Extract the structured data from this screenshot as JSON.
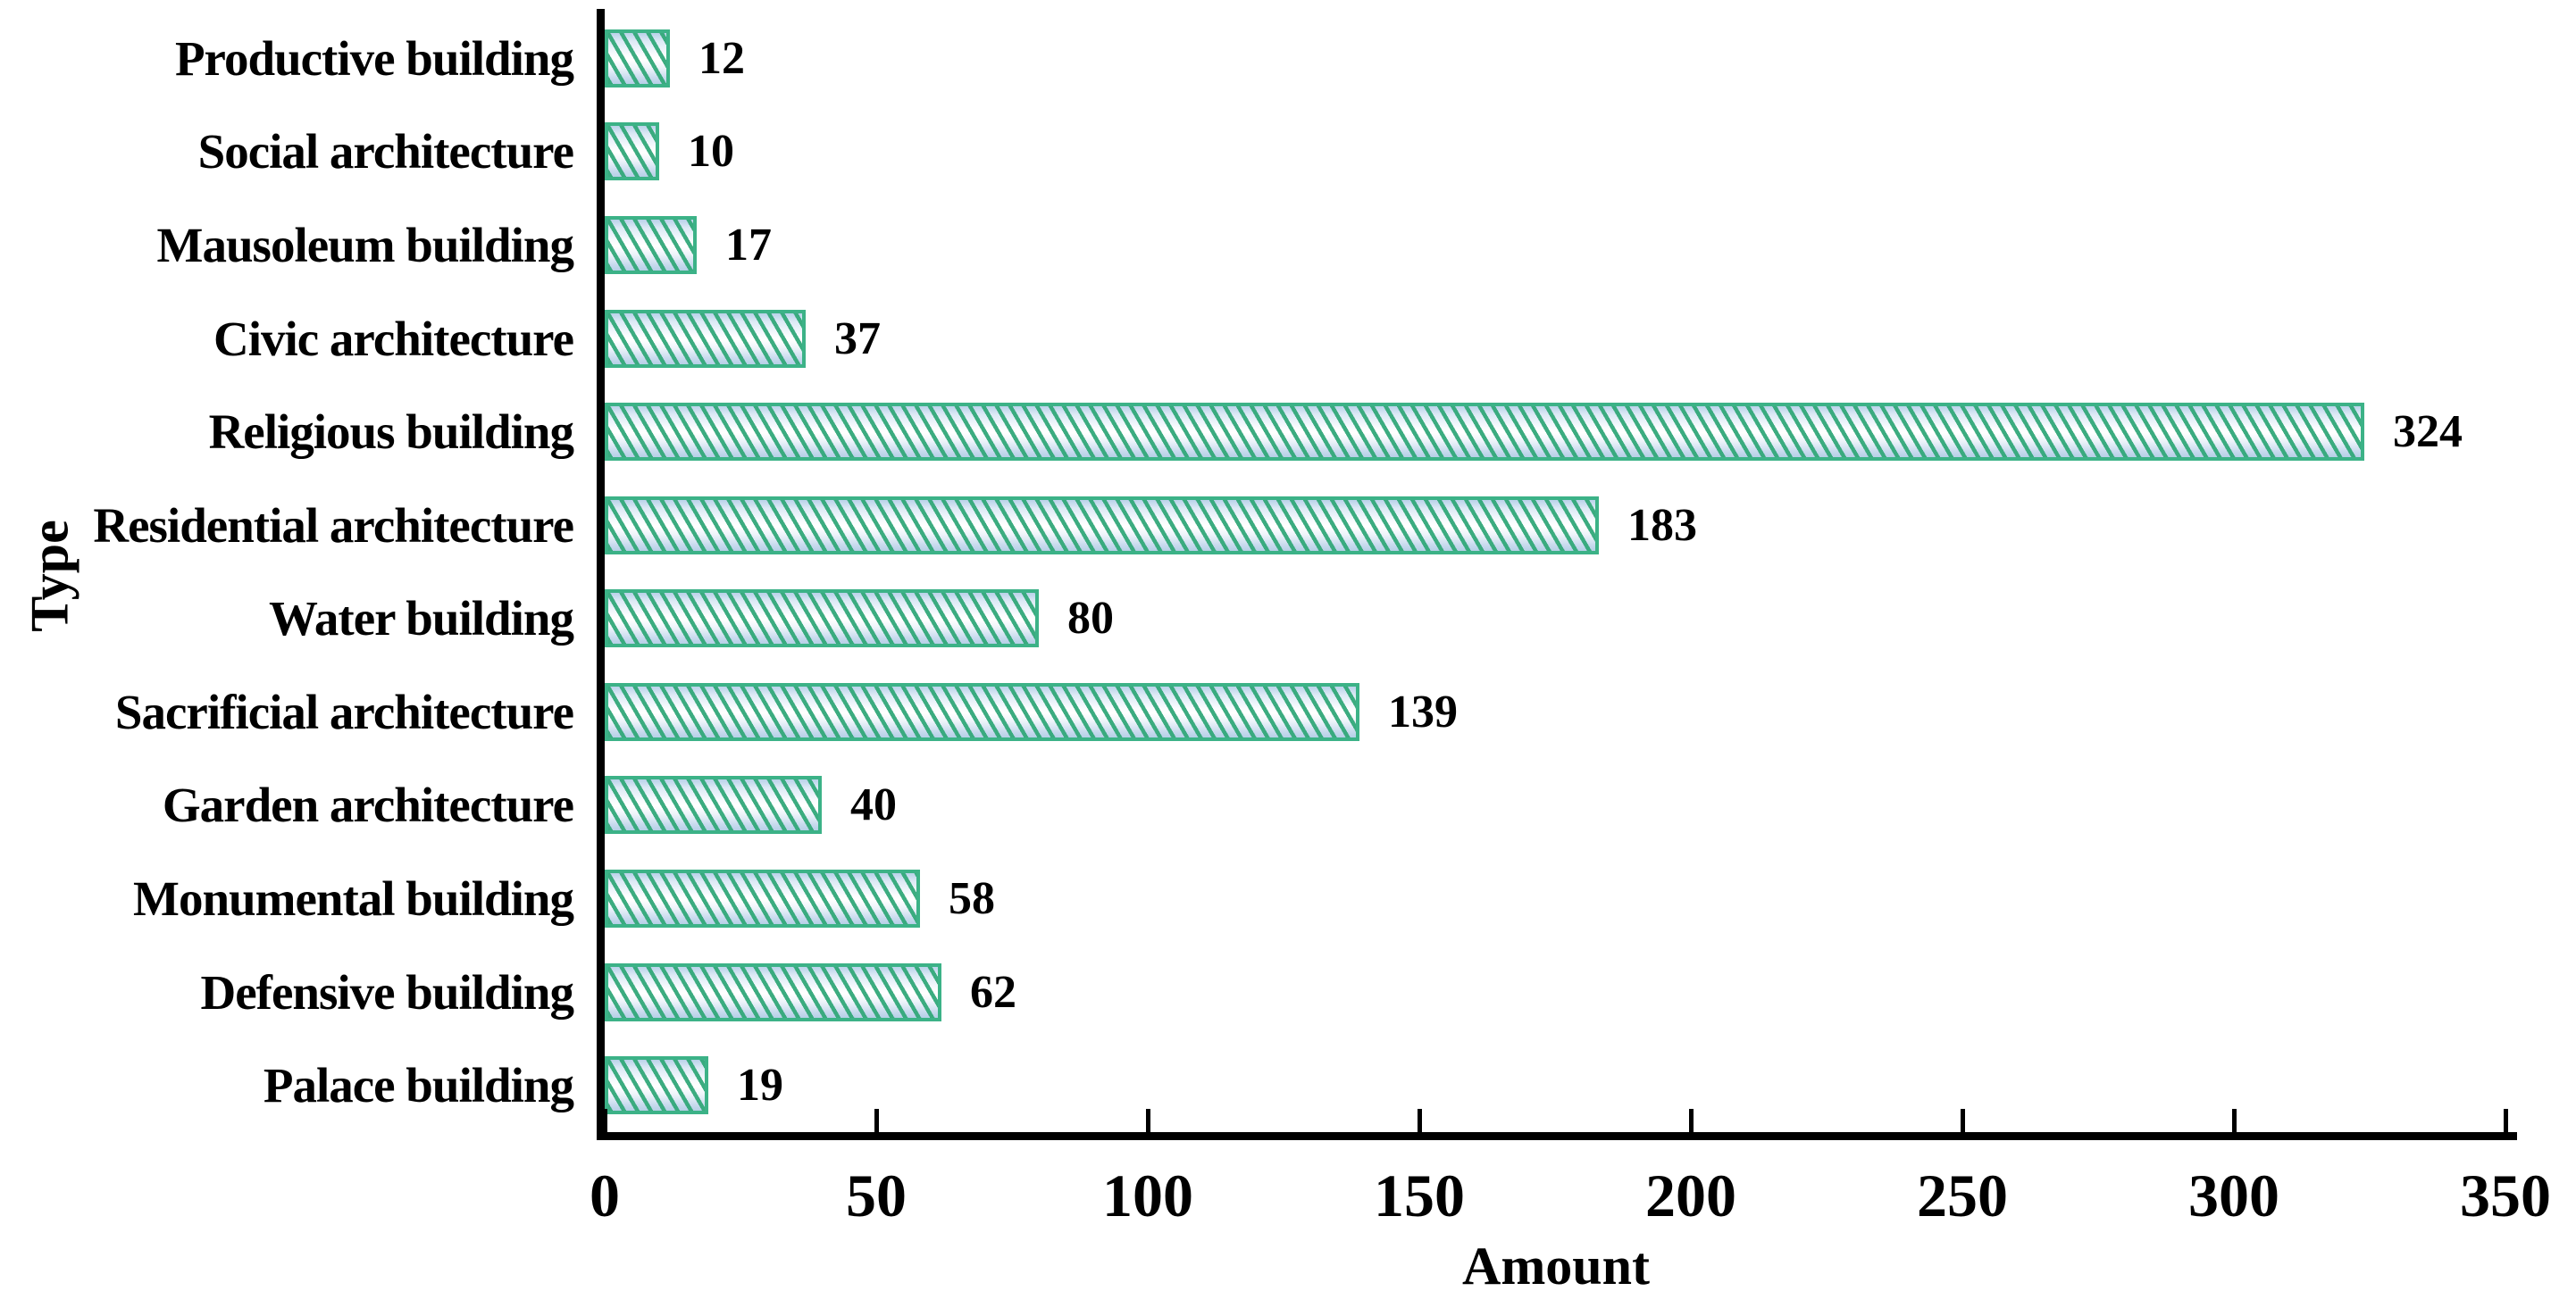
{
  "chart_data": {
    "type": "bar",
    "orientation": "horizontal",
    "title": "",
    "xlabel": "Amount",
    "ylabel": "Type",
    "categories": [
      "Productive building",
      "Social architecture",
      "Mausoleum building",
      "Civic architecture",
      "Religious building",
      "Residential architecture",
      "Water building",
      "Sacrificial architecture",
      "Garden architecture",
      "Monumental building",
      "Defensive building",
      "Palace building"
    ],
    "values": [
      12,
      10,
      17,
      37,
      324,
      183,
      80,
      139,
      40,
      58,
      62,
      19
    ],
    "value_labels_shown": true,
    "xlim": [
      0,
      350
    ],
    "xticks": [
      0,
      50,
      100,
      150,
      200,
      250,
      300,
      350
    ],
    "grid": false,
    "legend": null,
    "colors": {
      "bar_border": "#3cb287",
      "bar_hatch_line": "#32a879",
      "bar_fill_light": "#ffffff",
      "bar_fill_blue": "#b9d2e9",
      "axis": "#000000",
      "text": "#000000"
    },
    "hatch_pattern": "steep-diagonal-lines"
  }
}
